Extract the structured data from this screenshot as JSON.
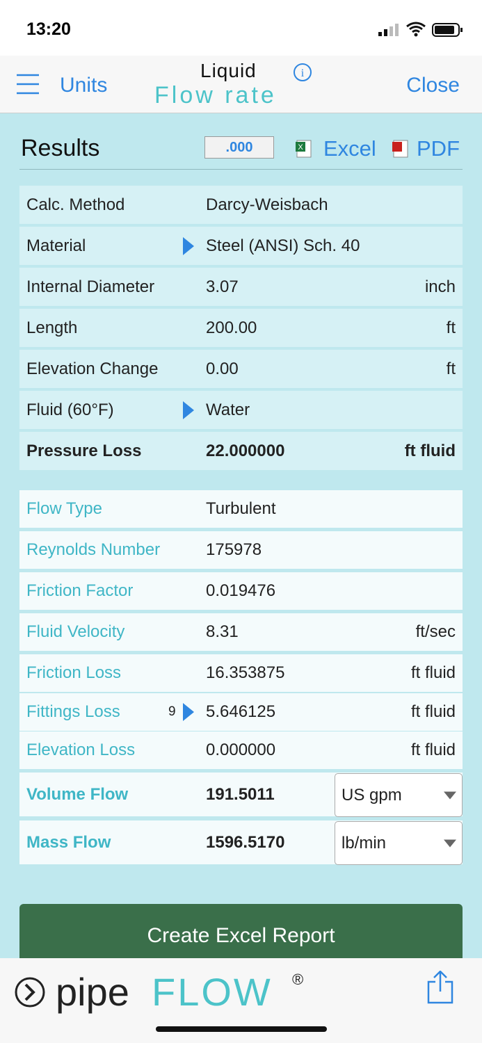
{
  "status_bar": {
    "time": "13:20"
  },
  "nav": {
    "menu": "Units",
    "title_top": "Liquid",
    "title_bottom": "Flow rate",
    "close": "Close"
  },
  "results": {
    "title": "Results",
    "precision": ".000",
    "excel": "Excel",
    "pdf": "PDF"
  },
  "inputs": [
    {
      "label": "Calc. Method",
      "value": "Darcy-Weisbach"
    },
    {
      "label": "Material",
      "value": "Steel (ANSI) Sch.  40",
      "link": true
    },
    {
      "label": "Internal Diameter",
      "value": "3.07",
      "unit": "inch"
    },
    {
      "label": "Length",
      "value": "200.00",
      "unit": "ft"
    },
    {
      "label": "Elevation Change",
      "value": "0.00",
      "unit": "ft"
    },
    {
      "label": "Fluid (60°F)",
      "value": "Water",
      "link": true
    },
    {
      "label": "Pressure Loss",
      "value": "22.000000",
      "unit": "ft fluid",
      "bold": true
    }
  ],
  "outputs": [
    {
      "label": "Flow Type",
      "value": "Turbulent"
    },
    {
      "label": "Reynolds Number",
      "value": "175978"
    },
    {
      "label": "Friction Factor",
      "value": "0.019476"
    },
    {
      "label": "Fluid Velocity",
      "value": "8.31",
      "unit": "ft/sec"
    },
    {
      "label": "Friction Loss",
      "value": "16.353875",
      "unit": "ft fluid"
    },
    {
      "label": "Fittings Loss",
      "value": "5.646125",
      "unit": "ft fluid",
      "count": "9",
      "link": true
    },
    {
      "label": "Elevation Loss",
      "value": "0.000000",
      "unit": "ft fluid"
    }
  ],
  "flows": [
    {
      "label": "Volume Flow",
      "value": "191.5011",
      "unit": "US gpm"
    },
    {
      "label": "Mass Flow",
      "value": "1596.5170",
      "unit": "lb/min"
    }
  ],
  "button": "Create Excel Report",
  "footer": {
    "brand_left": "pipe",
    "brand_right": "FLOW",
    "mark": "®"
  }
}
